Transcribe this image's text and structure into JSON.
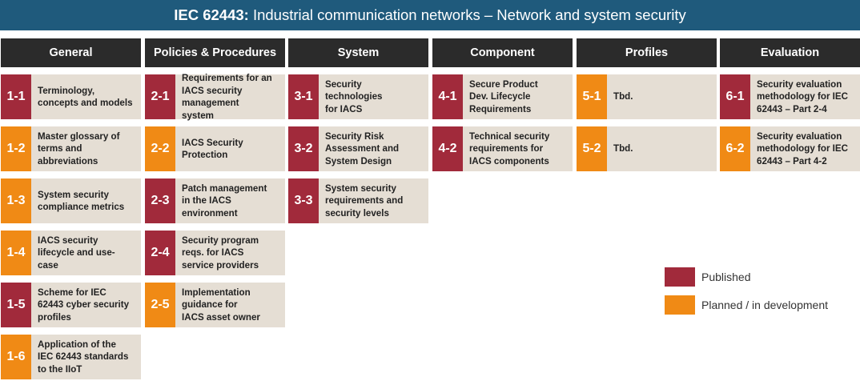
{
  "title": {
    "prefix": "IEC 62443:",
    "text": " Industrial communication networks – Network and system security"
  },
  "status_colors": {
    "published": "#a12a3b",
    "planned": "#f08a15"
  },
  "columns": [
    {
      "header": "General",
      "items": [
        {
          "code": "1-1",
          "status": "published",
          "text": "Terminology,\nconcepts and models"
        },
        {
          "code": "1-2",
          "status": "planned",
          "text": "Master glossary of\nterms and\nabbreviations"
        },
        {
          "code": "1-3",
          "status": "planned",
          "text": "System security\ncompliance metrics"
        },
        {
          "code": "1-4",
          "status": "planned",
          "text": "IACS security\nlifecycle and use-\ncase"
        },
        {
          "code": "1-5",
          "status": "published",
          "text": "Scheme for IEC\n62443 cyber security\nprofiles"
        },
        {
          "code": "1-6",
          "status": "planned",
          "text": "Application of the\nIEC 62443 standards\nto the IIoT"
        }
      ]
    },
    {
      "header": "Policies & Procedures",
      "items": [
        {
          "code": "2-1",
          "status": "published",
          "text": "Requirements for an\nIACS security\nmanagement\nsystem"
        },
        {
          "code": "2-2",
          "status": "planned",
          "text": "IACS Security\nProtection"
        },
        {
          "code": "2-3",
          "status": "published",
          "text": "Patch management\nin the IACS\nenvironment"
        },
        {
          "code": "2-4",
          "status": "published",
          "text": "Security program\nreqs. for IACS\nservice providers"
        },
        {
          "code": "2-5",
          "status": "planned",
          "text": "Implementation\nguidance for\nIACS asset owner"
        }
      ]
    },
    {
      "header": "System",
      "items": [
        {
          "code": "3-1",
          "status": "published",
          "text": "Security\ntechnologies\nfor IACS"
        },
        {
          "code": "3-2",
          "status": "published",
          "text": "Security Risk\nAssessment and\nSystem Design"
        },
        {
          "code": "3-3",
          "status": "published",
          "text": "System security\nrequirements and\nsecurity levels"
        }
      ]
    },
    {
      "header": "Component",
      "items": [
        {
          "code": "4-1",
          "status": "published",
          "text": "Secure Product\nDev. Lifecycle\nRequirements"
        },
        {
          "code": "4-2",
          "status": "published",
          "text": "Technical security\nrequirements for\nIACS components"
        }
      ]
    },
    {
      "header": "Profiles",
      "items": [
        {
          "code": "5-1",
          "status": "planned",
          "text": "Tbd."
        },
        {
          "code": "5-2",
          "status": "planned",
          "text": "Tbd."
        }
      ]
    },
    {
      "header": "Evaluation",
      "items": [
        {
          "code": "6-1",
          "status": "published",
          "text": "Security evaluation\nmethodology for IEC\n62443 – Part 2-4"
        },
        {
          "code": "6-2",
          "status": "planned",
          "text": "Security evaluation\nmethodology for IEC\n62443 – Part 4-2"
        }
      ]
    }
  ],
  "legend": {
    "published": "Published",
    "planned": "Planned / in development"
  }
}
